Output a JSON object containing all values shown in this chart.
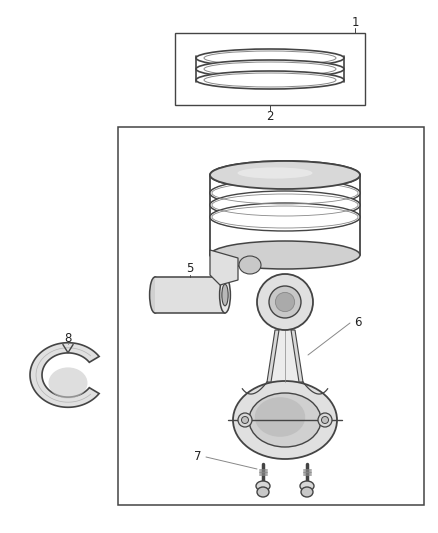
{
  "background_color": "#ffffff",
  "lc": "#444444",
  "lc2": "#888888",
  "fig_width": 4.38,
  "fig_height": 5.33,
  "dpi": 100
}
